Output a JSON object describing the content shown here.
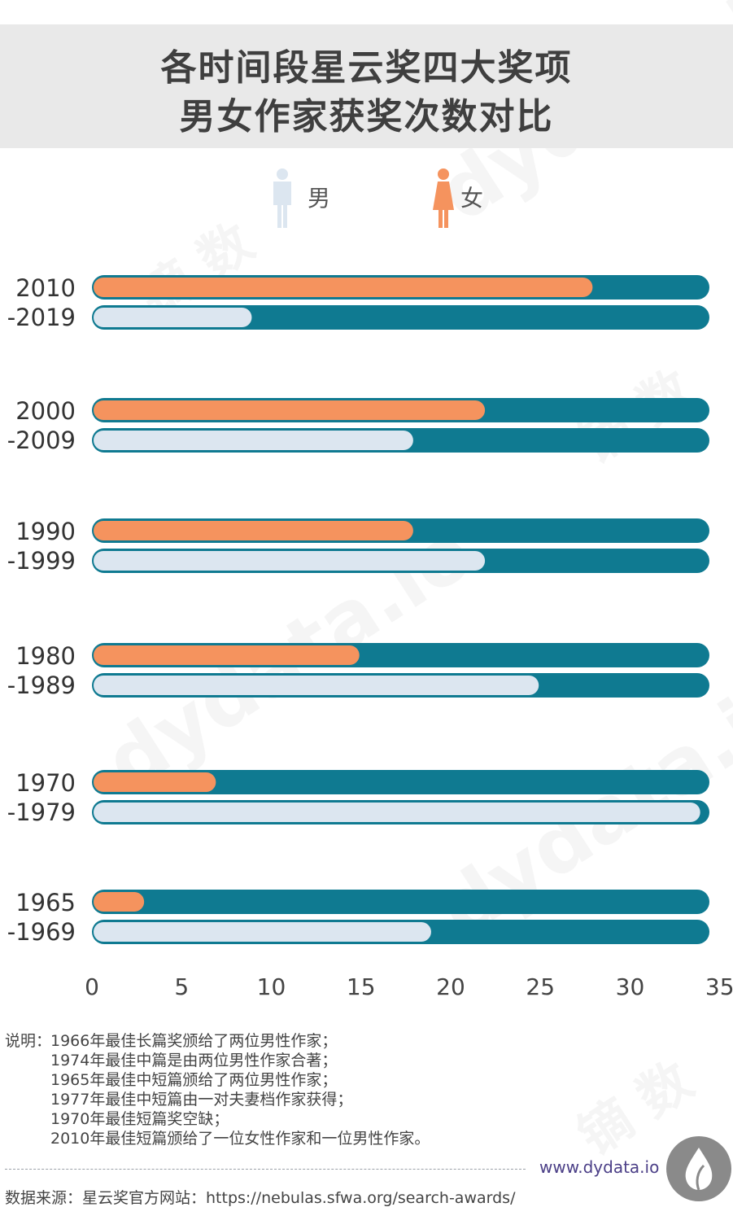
{
  "header": {
    "title_line1": "各时间段星云奖四大奖项",
    "title_line2": "男女作家获奖次数对比"
  },
  "legend": {
    "male": {
      "label": "男",
      "icon": "male-figure-icon",
      "color": "#dce6f0"
    },
    "female": {
      "label": "女",
      "icon": "female-figure-icon",
      "color": "#f5935e"
    }
  },
  "chart_data": {
    "type": "bar",
    "orientation": "horizontal",
    "categories": [
      {
        "line1": "2010",
        "line2": "-2019"
      },
      {
        "line1": "2000",
        "line2": "-2009"
      },
      {
        "line1": "1990",
        "line2": "-1999"
      },
      {
        "line1": "1980",
        "line2": "-1989"
      },
      {
        "line1": "1970",
        "line2": "-1979"
      },
      {
        "line1": "1965",
        "line2": "-1969"
      }
    ],
    "series": [
      {
        "name": "女",
        "color": "#f5935e",
        "values": [
          28,
          22,
          18,
          15,
          7,
          3
        ]
      },
      {
        "name": "男",
        "color": "#dce6f0",
        "values": [
          9,
          18,
          22,
          25,
          34,
          19
        ]
      }
    ],
    "track_color": "#0f7a91",
    "xlim": [
      0,
      35
    ],
    "xticks": [
      0,
      5,
      10,
      15,
      20,
      25,
      30,
      35
    ],
    "grid": false
  },
  "notes": {
    "label": "说明：",
    "lines": [
      "1966年最佳长篇奖颁给了两位男性作家；",
      "1974年最佳中篇是由两位男性作家合著；",
      "1965年最佳中短篇颁给了两位男性作家；",
      "1977年最佳中短篇由一对夫妻档作家获得；",
      "1970年最佳短篇奖空缺；",
      "2010年最佳短篇颁给了一位女性作家和一位男性作家。"
    ]
  },
  "footer": {
    "website": "www.dydata.io",
    "source": "数据来源：星云奖官方网站：https://nebulas.sfwa.org/search-awards/"
  },
  "watermarks": [
    "dydata.io",
    "镝 数"
  ]
}
